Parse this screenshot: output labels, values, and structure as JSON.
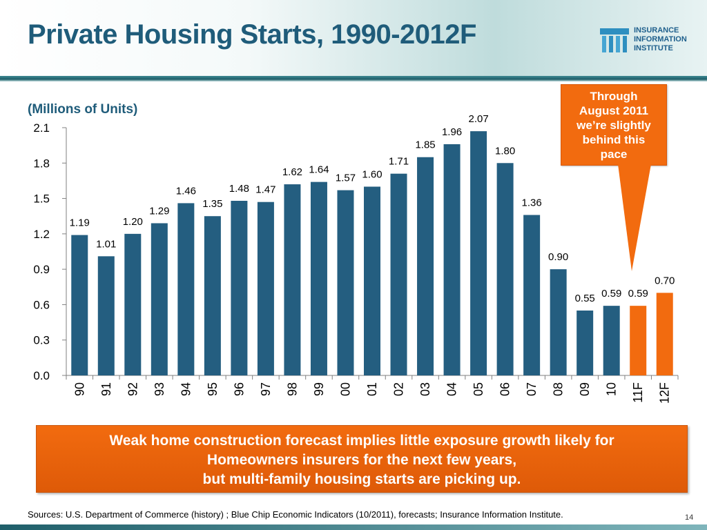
{
  "slide": {
    "title": "Private Housing Starts, 1990-2012F",
    "page_number": "14",
    "logo_lines": [
      "INSURANCE",
      "INFORMATION",
      "INSTITUTE"
    ],
    "callout_lines": [
      "Through",
      "August 2011",
      "we’re slightly",
      "behind this",
      "pace"
    ],
    "message_lines": [
      "Weak home construction forecast implies little exposure growth likely for",
      "Homeowners insurers for the next few years,",
      "but multi-family housing starts are picking up."
    ],
    "source": "Sources: U.S. Department of Commerce (history) ; Blue Chip Economic Indicators (10/2011), forecasts; Insurance Information Institute."
  },
  "colors": {
    "title": "#1f5c7a",
    "bar_history": "#245e80",
    "bar_forecast": "#f26b0f",
    "callout_fill": "#f26b0f"
  },
  "chart_data": {
    "type": "bar",
    "ylabel": "(Millions of Units)",
    "xlabel": "",
    "ylim": [
      0,
      2.1
    ],
    "yticks": [
      "0.0",
      "0.3",
      "0.6",
      "0.9",
      "1.2",
      "1.5",
      "1.8",
      "2.1"
    ],
    "grid": false,
    "categories": [
      "90",
      "91",
      "92",
      "93",
      "94",
      "95",
      "96",
      "97",
      "98",
      "99",
      "00",
      "01",
      "02",
      "03",
      "04",
      "05",
      "06",
      "07",
      "08",
      "09",
      "10",
      "11F",
      "12F"
    ],
    "values": [
      1.19,
      1.01,
      1.2,
      1.29,
      1.46,
      1.35,
      1.48,
      1.47,
      1.62,
      1.64,
      1.57,
      1.6,
      1.71,
      1.85,
      1.96,
      2.07,
      1.8,
      1.36,
      0.9,
      0.55,
      0.59,
      0.59,
      0.7
    ],
    "value_labels": [
      "1.19",
      "1.01",
      "1.20",
      "1.29",
      "1.46",
      "1.35",
      "1.48",
      "1.47",
      "1.62",
      "1.64",
      "1.57",
      "1.60",
      "1.71",
      "1.85",
      "1.96",
      "2.07",
      "1.80",
      "1.36",
      "0.90",
      "0.55",
      "0.59",
      "0.59",
      "0.70"
    ],
    "forecast": [
      false,
      false,
      false,
      false,
      false,
      false,
      false,
      false,
      false,
      false,
      false,
      false,
      false,
      false,
      false,
      false,
      false,
      false,
      false,
      false,
      false,
      true,
      true
    ]
  }
}
